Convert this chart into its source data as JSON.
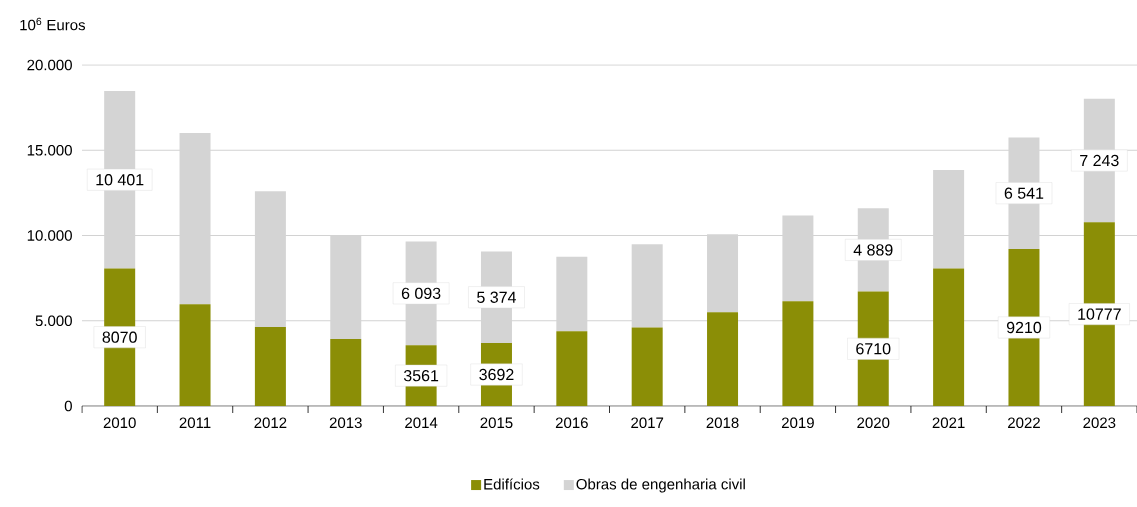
{
  "chart_data": {
    "type": "bar",
    "stacked": true,
    "ylabel": "10$^{6}$ Euros",
    "categories": [
      "2010",
      "2011",
      "2012",
      "2013",
      "2014",
      "2015",
      "2016",
      "2017",
      "2018",
      "2019",
      "2020",
      "2021",
      "2022",
      "2023"
    ],
    "series": [
      {
        "name": "Edifícios",
        "color": "#8b8e06",
        "values": [
          8070,
          5970,
          4640,
          3930,
          3561,
          3692,
          4390,
          4610,
          5500,
          6140,
          6710,
          8060,
          9210,
          10777
        ],
        "value_labels": [
          "8070",
          null,
          null,
          null,
          "3561",
          "3692",
          null,
          null,
          null,
          null,
          "6710",
          null,
          "9210",
          "10777"
        ]
      },
      {
        "name": "Obras de engenharia civil",
        "color": "#d4d4d4",
        "values": [
          10401,
          10040,
          7960,
          6070,
          6093,
          5374,
          4370,
          4870,
          4570,
          5030,
          4889,
          5780,
          6541,
          7243
        ],
        "value_labels": [
          "10 401",
          null,
          null,
          null,
          "6 093",
          "5 374",
          null,
          null,
          null,
          null,
          "4 889",
          null,
          "6 541",
          "7 243"
        ]
      }
    ],
    "ylim": [
      0,
      20000
    ],
    "yticks": [
      {
        "value": 0,
        "label": "0"
      },
      {
        "value": 5000,
        "label": "5.000"
      },
      {
        "value": 10000,
        "label": "10.000"
      },
      {
        "value": 15000,
        "label": "15.000"
      },
      {
        "value": 20000,
        "label": "20.000"
      }
    ],
    "grid": "y",
    "legend": "bottom"
  }
}
